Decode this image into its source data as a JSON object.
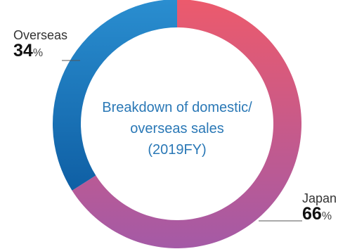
{
  "chart_data": {
    "type": "pie",
    "donut": true,
    "center_text": [
      "Breakdown of domestic/",
      "overseas sales",
      "(2019FY)"
    ],
    "categories": [
      "Japan",
      "Overseas"
    ],
    "values": [
      66,
      34
    ],
    "unit": "%",
    "slices": [
      {
        "name": "Japan",
        "value": 66,
        "value_text": "66",
        "unit": "%",
        "colors": [
          "#ec5a6c",
          "#a45aa6"
        ]
      },
      {
        "name": "Overseas",
        "value": 34,
        "value_text": "34",
        "unit": "%",
        "colors": [
          "#0f5fa4",
          "#2a8ed0"
        ]
      }
    ],
    "center_text_color": "#2a78b6"
  }
}
